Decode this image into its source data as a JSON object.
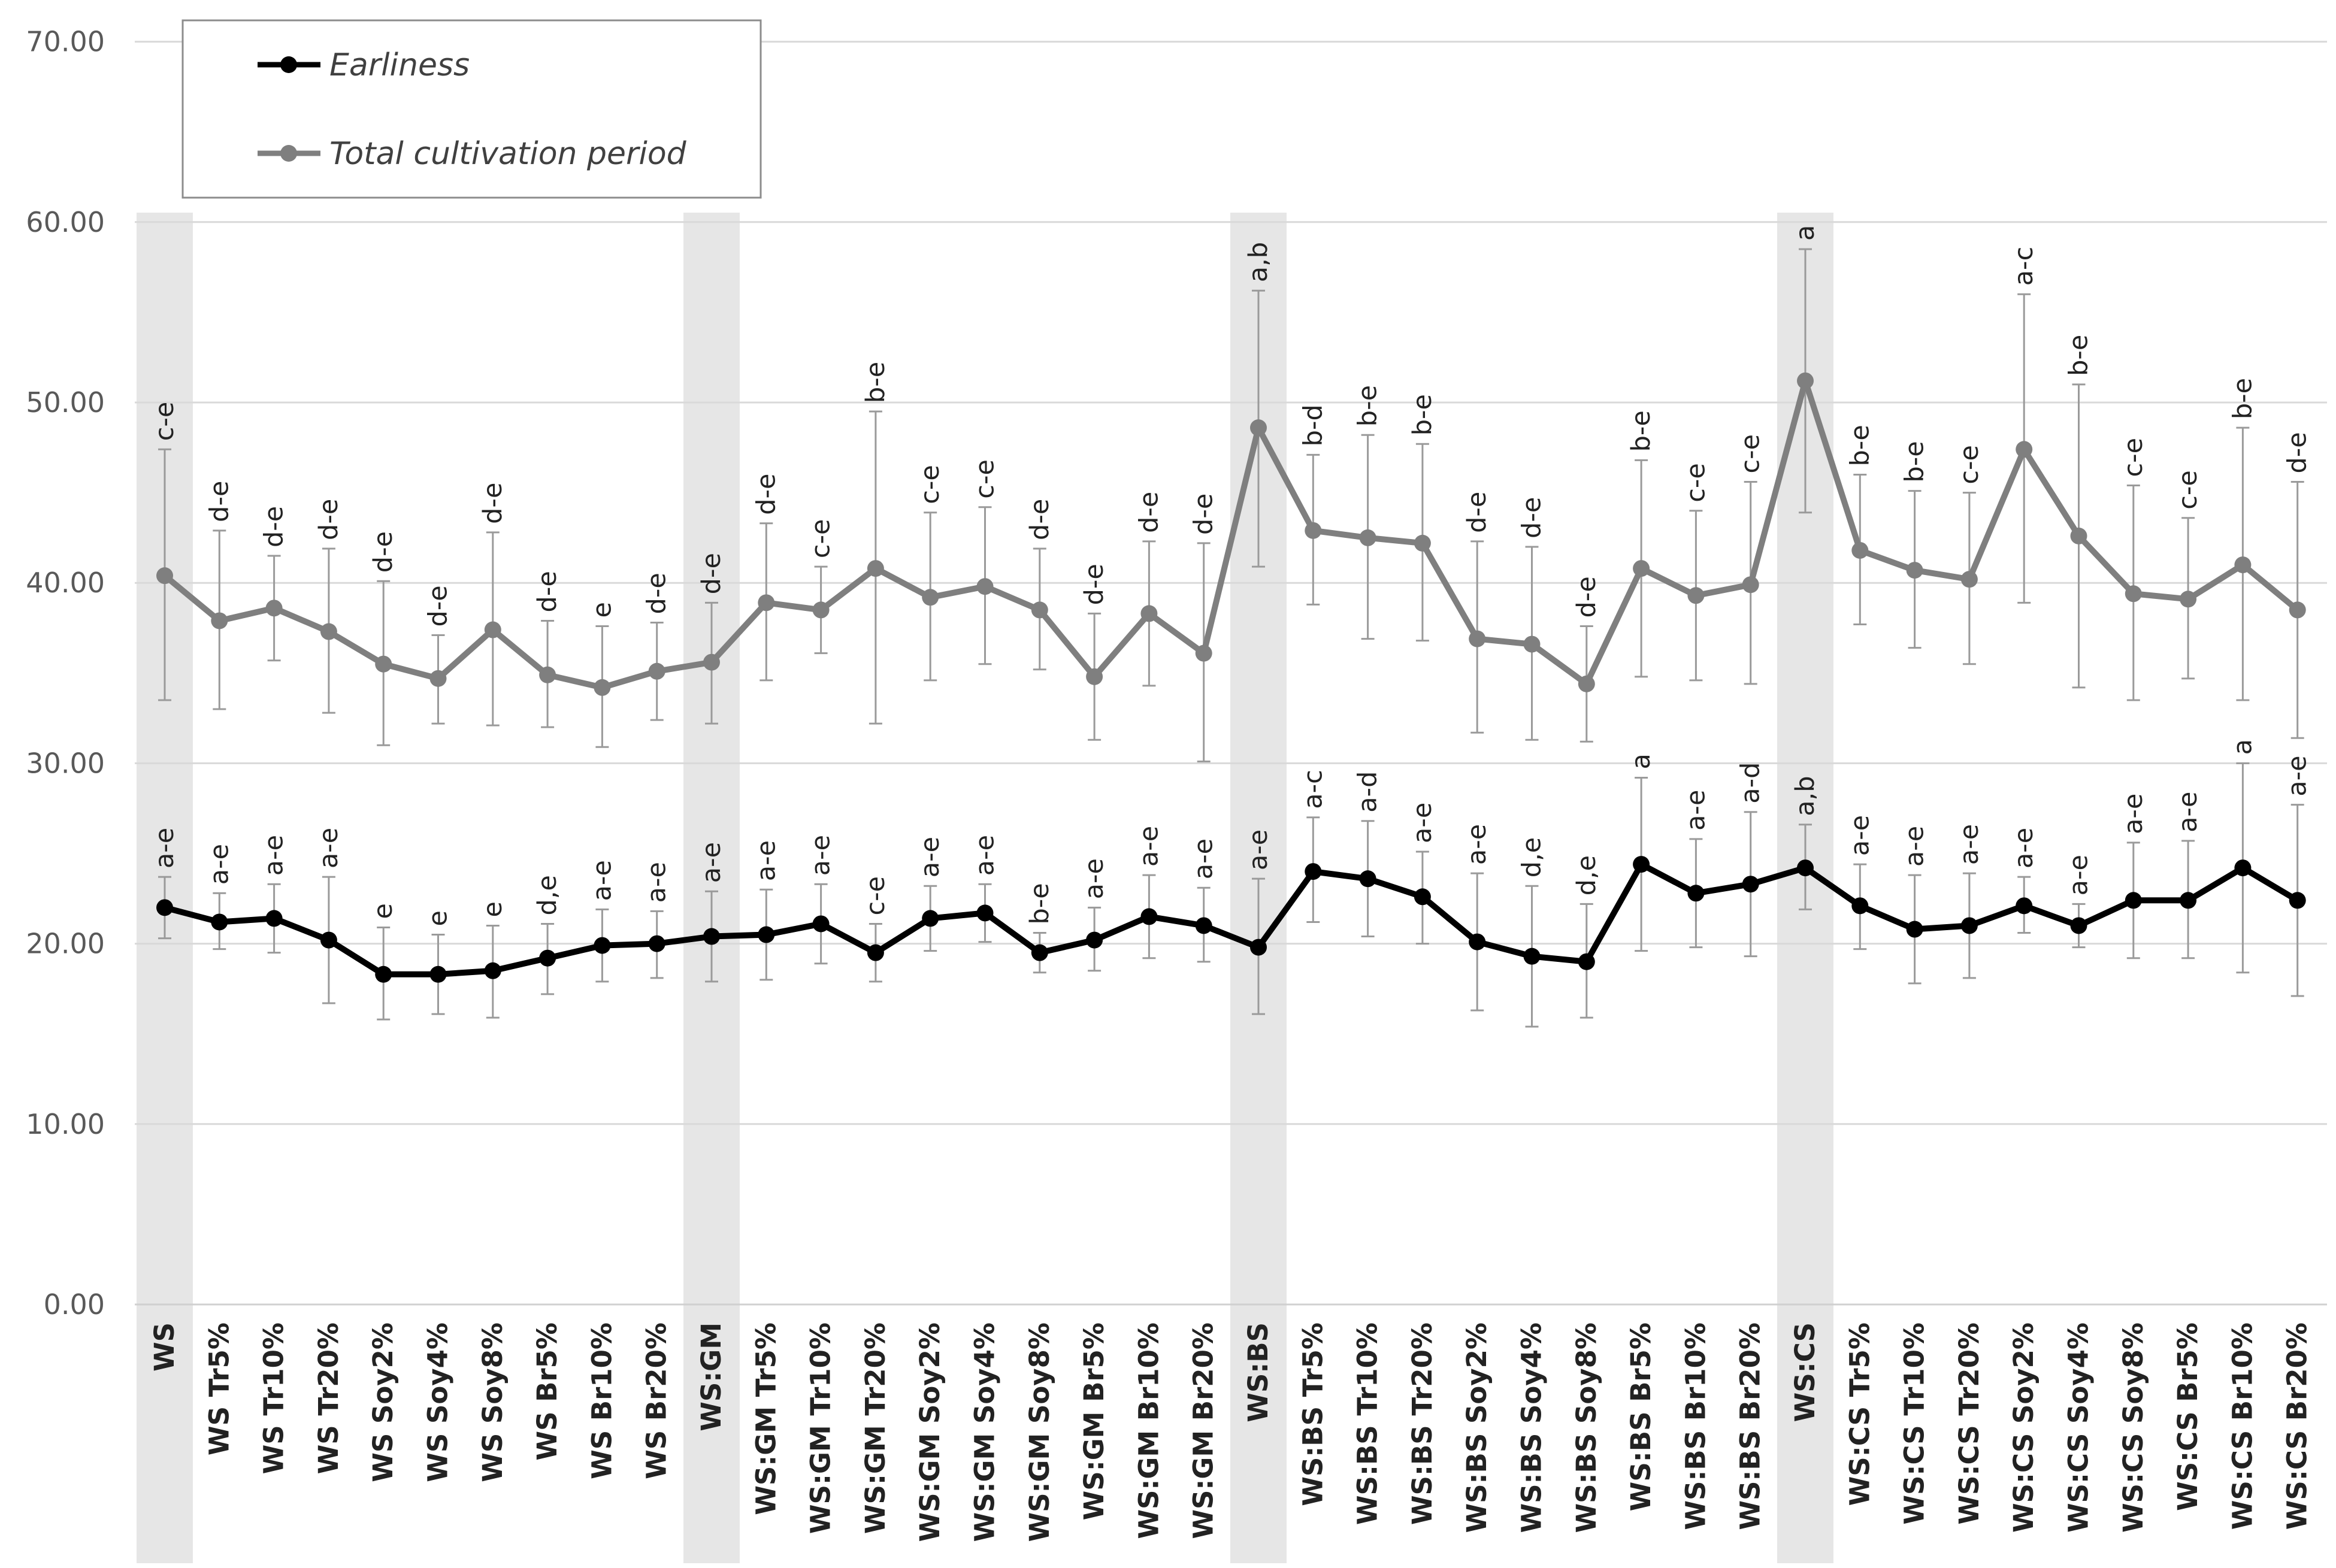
{
  "chart_data": {
    "type": "line",
    "title": "",
    "xlabel": "",
    "ylabel": "",
    "ylim": [
      0,
      70
    ],
    "ytick_values": [
      0,
      10,
      20,
      30,
      40,
      50,
      60,
      70
    ],
    "ytick_labels": [
      "0.00",
      "10.00",
      "20.00",
      "30.00",
      "40.00",
      "50.00",
      "60.00",
      "70.00"
    ],
    "grid": true,
    "legend_position": "top-left",
    "highlighted_categories": [
      "WS",
      "WS:GM",
      "WS:BS",
      "WS:CS"
    ],
    "categories": [
      "WS",
      "WS Tr5%",
      "WS Tr10%",
      "WS Tr20%",
      "WS Soy2%",
      "WS Soy4%",
      "WS Soy8%",
      "WS Br5%",
      "WS Br10%",
      "WS Br20%",
      "WS:GM",
      "WS:GM Tr5%",
      "WS:GM Tr10%",
      "WS:GM Tr20%",
      "WS:GM Soy2%",
      "WS:GM Soy4%",
      "WS:GM Soy8%",
      "WS:GM Br5%",
      "WS:GM Br10%",
      "WS:GM Br20%",
      "WS:BS",
      "WS:BS Tr5%",
      "WS:BS Tr10%",
      "WS:BS Tr20%",
      "WS:BS Soy2%",
      "WS:BS Soy4%",
      "WS:BS Soy8%",
      "WS:BS Br5%",
      "WS:BS Br10%",
      "WS:BS Br20%",
      "WS:CS",
      "WS:CS Tr5%",
      "WS:CS Tr10%",
      "WS:CS Tr20%",
      "WS:CS Soy2%",
      "WS:CS Soy4%",
      "WS:CS Soy8%",
      "WS:CS Br5%",
      "WS:CS Br10%",
      "WS:CS Br20%"
    ],
    "series": [
      {
        "name": "Earliness",
        "color": "#000000",
        "values": [
          22.0,
          21.2,
          21.4,
          20.2,
          18.3,
          18.3,
          18.5,
          19.2,
          19.9,
          20.0,
          20.4,
          20.5,
          21.1,
          19.5,
          21.4,
          21.7,
          19.5,
          20.2,
          21.5,
          21.0,
          19.8,
          24.0,
          23.6,
          22.6,
          20.1,
          19.3,
          19.0,
          24.4,
          22.8,
          23.3,
          24.2,
          22.1,
          20.8,
          21.0,
          22.1,
          21.0,
          22.4,
          22.4,
          24.2,
          22.4
        ],
        "error_low": [
          20.3,
          19.7,
          19.5,
          16.7,
          15.8,
          16.1,
          15.9,
          17.2,
          17.9,
          18.1,
          17.9,
          18.0,
          18.9,
          17.9,
          19.6,
          20.1,
          18.4,
          18.5,
          19.2,
          19.0,
          16.1,
          21.2,
          20.4,
          20.0,
          16.3,
          15.4,
          15.9,
          19.6,
          19.8,
          19.3,
          21.9,
          19.7,
          17.8,
          18.1,
          20.6,
          19.8,
          19.2,
          19.2,
          18.4,
          17.1
        ],
        "error_high": [
          23.7,
          22.8,
          23.3,
          23.7,
          20.9,
          20.5,
          21.0,
          21.1,
          21.9,
          21.8,
          22.9,
          23.0,
          23.3,
          21.1,
          23.2,
          23.3,
          20.6,
          22.0,
          23.8,
          23.1,
          23.6,
          27.0,
          26.8,
          25.1,
          23.9,
          23.2,
          22.2,
          29.2,
          25.8,
          27.3,
          26.6,
          24.4,
          23.8,
          23.9,
          23.7,
          22.2,
          25.6,
          25.7,
          30.0,
          27.7
        ],
        "significance": [
          "a-e",
          "a-e",
          "a-e",
          "a-e",
          "e",
          "e",
          "e",
          "d,e",
          "a-e",
          "a-e",
          "a-e",
          "a-e",
          "a-e",
          "c-e",
          "a-e",
          "a-e",
          "b-e",
          "a-e",
          "a-e",
          "a-e",
          "a-e",
          "a-c",
          "a-d",
          "a-e",
          "a-e",
          "d,e",
          "d,e",
          "a",
          "a-e",
          "a-d",
          "a,b",
          "a-e",
          "a-e",
          "a-e",
          "a-e",
          "a-e",
          "a-e",
          "a-e",
          "a",
          "a-e"
        ]
      },
      {
        "name": "Total cultivation period",
        "color": "#7f7f7f",
        "values": [
          40.4,
          37.9,
          38.6,
          37.3,
          35.5,
          34.7,
          37.4,
          34.9,
          34.2,
          35.1,
          35.6,
          38.9,
          38.5,
          40.8,
          39.2,
          39.8,
          38.5,
          34.8,
          38.3,
          36.1,
          48.6,
          42.9,
          42.5,
          42.2,
          36.9,
          36.6,
          34.4,
          40.8,
          39.3,
          39.9,
          51.2,
          41.8,
          40.7,
          40.2,
          47.4,
          42.6,
          39.4,
          39.1,
          41.0,
          38.5
        ],
        "error_low": [
          33.5,
          33.0,
          35.7,
          32.8,
          31.0,
          32.2,
          32.1,
          32.0,
          30.9,
          32.4,
          32.2,
          34.6,
          36.1,
          32.2,
          34.6,
          35.5,
          35.2,
          31.3,
          34.3,
          30.1,
          40.9,
          38.8,
          36.9,
          36.8,
          31.7,
          31.3,
          31.2,
          34.8,
          34.6,
          34.4,
          43.9,
          37.7,
          36.4,
          35.5,
          38.9,
          34.2,
          33.5,
          34.7,
          33.5,
          31.4
        ],
        "error_high": [
          47.4,
          42.9,
          41.5,
          41.9,
          40.1,
          37.1,
          42.8,
          37.9,
          37.6,
          37.8,
          38.9,
          43.3,
          40.9,
          49.5,
          43.9,
          44.2,
          41.9,
          38.3,
          42.3,
          42.2,
          56.2,
          47.1,
          48.2,
          47.7,
          42.3,
          42.0,
          37.6,
          46.8,
          44.0,
          45.6,
          58.5,
          46.0,
          45.1,
          45.0,
          56.0,
          51.0,
          45.4,
          43.6,
          48.6,
          45.6
        ],
        "significance": [
          "c-e",
          "d-e",
          "d-e",
          "d-e",
          "d-e",
          "d-e",
          "d-e",
          "d-e",
          "e",
          "d-e",
          "d-e",
          "d-e",
          "c-e",
          "b-e",
          "c-e",
          "c-e",
          "d-e",
          "d-e",
          "d-e",
          "d-e",
          "a,b",
          "b-d",
          "b-e",
          "b-e",
          "d-e",
          "d-e",
          "d-e",
          "b-e",
          "c-e",
          "c-e",
          "a",
          "b-e",
          "b-e",
          "c-e",
          "a-c",
          "b-e",
          "c-e",
          "c-e",
          "b-e",
          "d-e"
        ]
      }
    ]
  }
}
